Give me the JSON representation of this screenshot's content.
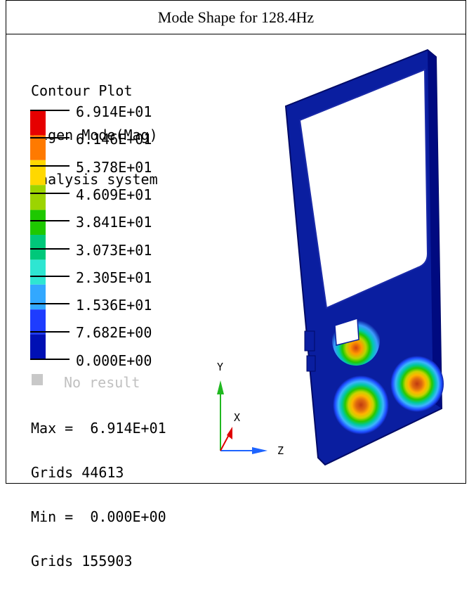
{
  "title": "Mode Shape for 128.4Hz",
  "legend": {
    "header_lines": [
      "Contour Plot",
      "Eigen Mode(Mag)",
      "Analysis system"
    ],
    "ticks": [
      "6.914E+01",
      "6.146E+01",
      "5.378E+01",
      "4.609E+01",
      "3.841E+01",
      "3.073E+01",
      "2.305E+01",
      "1.536E+01",
      "7.682E+00",
      "0.000E+00"
    ],
    "band_colors": [
      "#e60000",
      "#ff7a00",
      "#ffd800",
      "#9cd400",
      "#1ec800",
      "#00c87a",
      "#2ee6d2",
      "#32a8ff",
      "#1e3cff",
      "#0010b4"
    ],
    "no_result_label": "No result",
    "no_result_color": "#c8c8c8"
  },
  "stats": {
    "max_label": "Max =",
    "max_value": "6.914E+01",
    "max_grids": "Grids 44613",
    "min_label": "Min =",
    "min_value": "0.000E+00",
    "min_grids": "Grids 155903"
  },
  "triad": {
    "y": "Y",
    "x": "X",
    "z": "Z"
  },
  "colors": {
    "panel": "#0a1ea0",
    "panel_edge": "#000a66",
    "glass": "#ffffff"
  }
}
